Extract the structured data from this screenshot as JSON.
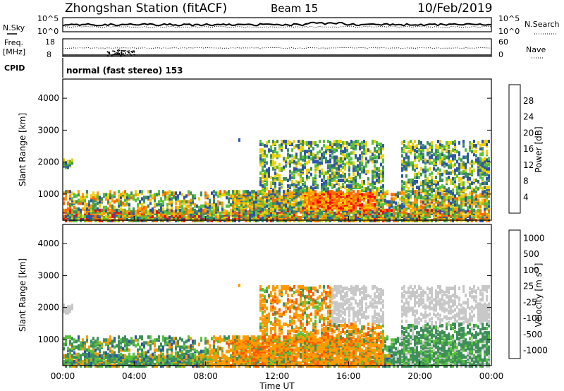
{
  "header": {
    "station": "Zhongshan Station (fitACF)",
    "beam": "Beam 15",
    "date": "10/Feb/2019"
  },
  "noise_panel": {
    "left_label": "N.Sky",
    "right_label": "N.Search",
    "left_ticks": [
      "10^5",
      "10^0"
    ],
    "right_ticks": [
      "10^5",
      "10^0"
    ]
  },
  "freq_panel": {
    "left_label_1": "Freq.",
    "left_label_2": "[MHz]",
    "right_label": "Nave",
    "left_ticks": [
      "18",
      "8"
    ],
    "right_ticks": [
      "60",
      "0"
    ]
  },
  "cpid": {
    "label": "CPID",
    "text": "normal (fast stereo) 153"
  },
  "colors": {
    "power": [
      "#1a35ff",
      "#2f56a6",
      "#3f8f5a",
      "#58c23b",
      "#f0d000",
      "#ff9d00",
      "#ff6a00",
      "#ff0000"
    ],
    "velocity": [
      "#ff0000",
      "#ff5a00",
      "#ff9a00",
      "#c8c8c8",
      "#58c23b",
      "#3f8f5a",
      "#2f56a6",
      "#1a35ff"
    ]
  },
  "chart_data": [
    {
      "type": "heatmap",
      "name": "power",
      "ylabel": "Slant Range [km]",
      "yticks": [
        "1000",
        "2000",
        "3000",
        "4000"
      ],
      "ylim": [
        180,
        4600
      ],
      "xlim_hours": [
        0,
        24
      ],
      "colorbar": {
        "label": "Power [dB]",
        "ticks": [
          "4",
          "8",
          "12",
          "16",
          "20",
          "24",
          "28"
        ],
        "range": [
          0,
          32
        ]
      }
    },
    {
      "type": "heatmap",
      "name": "velocity",
      "ylabel": "Slant Range [km]",
      "yticks": [
        "1000",
        "2000",
        "3000",
        "4000"
      ],
      "ylim": [
        180,
        4600
      ],
      "xlim_hours": [
        0,
        24
      ],
      "colorbar": {
        "label": "Velocity [m s",
        "label_sup": "-1",
        "label_end": "]",
        "ticks": [
          "1000",
          "500",
          "100",
          "25",
          "-25",
          "-100",
          "-500",
          "-1000"
        ]
      }
    }
  ],
  "x_axis": {
    "label": "Time UT",
    "ticks": [
      "00:00",
      "04:00",
      "08:00",
      "12:00",
      "16:00",
      "20:00",
      "00:00"
    ]
  }
}
